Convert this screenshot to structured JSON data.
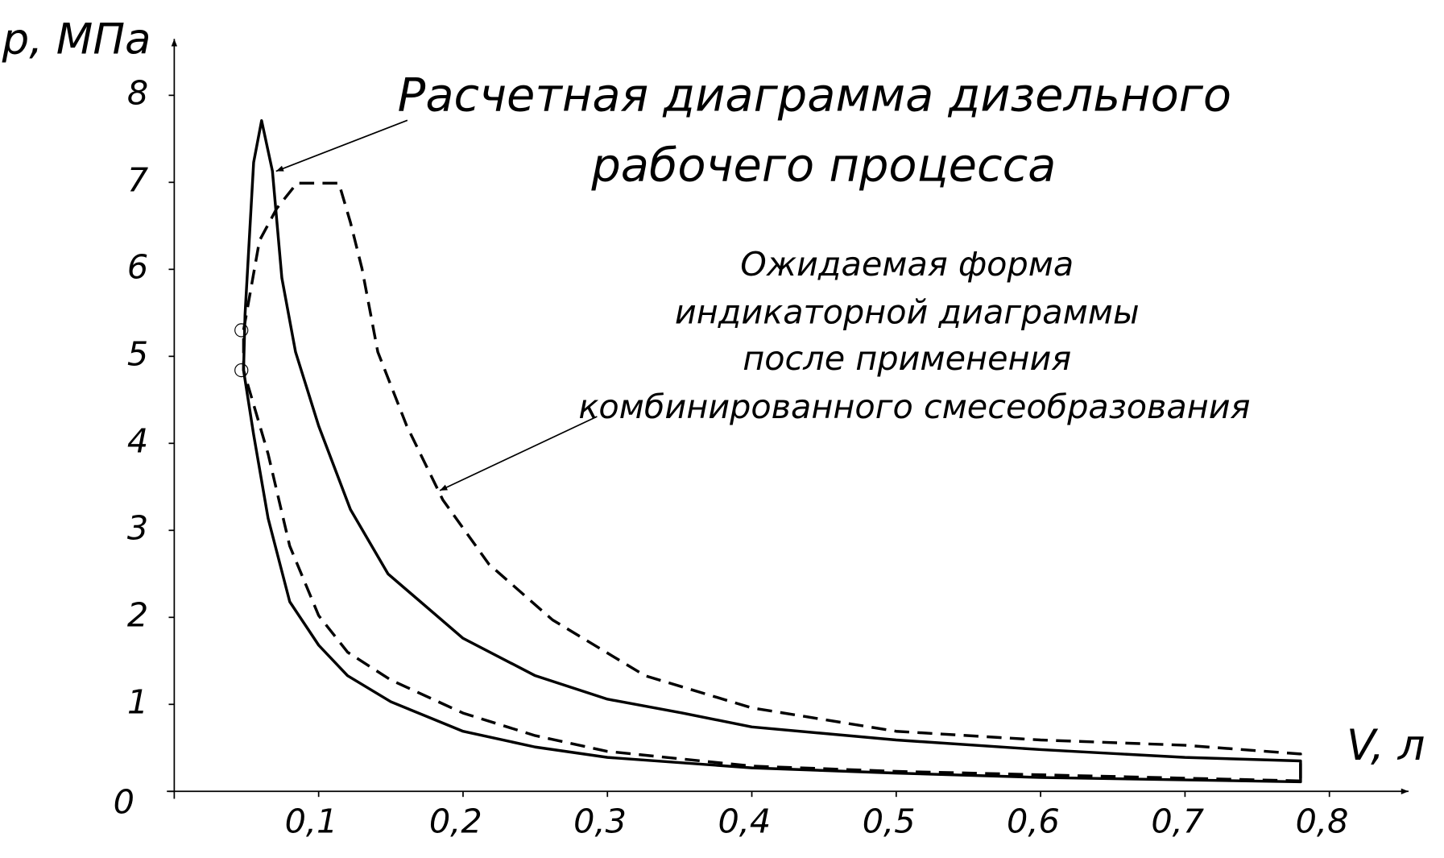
{
  "chart_data": {
    "type": "line",
    "title": [
      "Расчетная диаграмма дизельного",
      "рабочего процесса"
    ],
    "annotation": [
      "Ожидаемая форма",
      "индикаторной диаграммы",
      "после применения",
      "комбинированного смесеобразования"
    ],
    "x_label": "V, л",
    "y_label": "p, МПа",
    "xlim": [
      0,
      0.85
    ],
    "ylim": [
      0,
      8.6
    ],
    "xticks": [
      {
        "value": 0.1,
        "label": "0,1"
      },
      {
        "value": 0.2,
        "label": "0,2"
      },
      {
        "value": 0.3,
        "label": "0,3"
      },
      {
        "value": 0.4,
        "label": "0,4"
      },
      {
        "value": 0.5,
        "label": "0,5"
      },
      {
        "value": 0.6,
        "label": "0,6"
      },
      {
        "value": 0.7,
        "label": "0,7"
      },
      {
        "value": 0.8,
        "label": "0,8"
      }
    ],
    "yticks": [
      0,
      1,
      2,
      3,
      4,
      5,
      6,
      7,
      8
    ],
    "series": [
      {
        "color": "#000000",
        "style": "solid",
        "x": [
          0.78,
          0.6,
          0.5,
          0.4,
          0.3,
          0.25,
          0.2,
          0.15,
          0.12,
          0.1,
          0.08,
          0.065,
          0.055,
          0.048,
          0.049,
          0.055,
          0.0605,
          0.068,
          0.0745,
          0.084,
          0.1,
          0.122,
          0.148,
          0.2,
          0.25,
          0.3,
          0.352,
          0.4,
          0.5,
          0.6,
          0.7,
          0.78
        ],
        "values": [
          0.11,
          0.16,
          0.21,
          0.27,
          0.39,
          0.51,
          0.69,
          1.03,
          1.33,
          1.68,
          2.18,
          3.14,
          4.1,
          4.84,
          5.48,
          7.23,
          7.71,
          7.13,
          5.9,
          5.05,
          4.2,
          3.24,
          2.5,
          1.76,
          1.33,
          1.06,
          0.9,
          0.74,
          0.59,
          0.48,
          0.39,
          0.35
        ]
      },
      {
        "color": "#000000",
        "style": "dashed",
        "x": [
          0.78,
          0.6,
          0.5,
          0.4,
          0.3,
          0.25,
          0.2,
          0.15,
          0.12,
          0.1,
          0.08,
          0.065,
          0.048,
          0.048,
          0.059,
          0.071,
          0.085,
          0.114,
          0.122,
          0.13,
          0.141,
          0.161,
          0.186,
          0.218,
          0.262,
          0.326,
          0.4,
          0.5,
          0.6,
          0.7,
          0.78
        ],
        "values": [
          0.12,
          0.19,
          0.23,
          0.29,
          0.46,
          0.64,
          0.9,
          1.28,
          1.6,
          2.02,
          2.82,
          3.88,
          4.84,
          5.3,
          6.33,
          6.7,
          6.99,
          6.99,
          6.54,
          6.01,
          5.05,
          4.2,
          3.35,
          2.61,
          1.97,
          1.33,
          0.96,
          0.69,
          0.59,
          0.53,
          0.43
        ]
      }
    ],
    "points": {
      "x": [
        0.0465,
        0.0465
      ],
      "values": [
        4.84,
        5.3
      ]
    }
  }
}
